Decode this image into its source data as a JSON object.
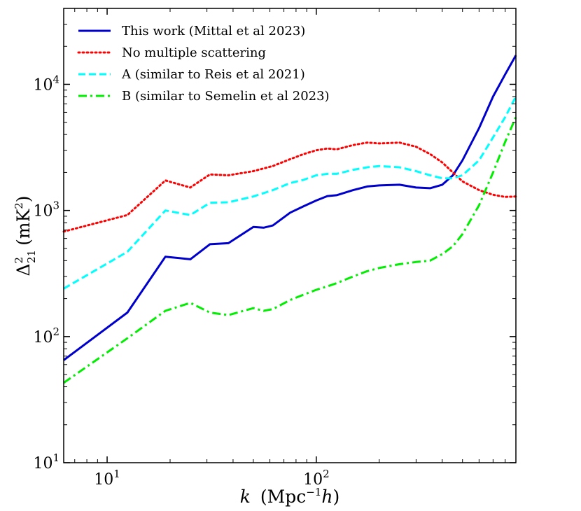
{
  "chart_data": {
    "type": "line",
    "title": "",
    "xlabel": "k (Mpc⁻¹h)",
    "ylabel": "Δ²₂₁ (mK²)",
    "xscale": "log",
    "yscale": "log",
    "xlim": [
      6.2,
      900
    ],
    "ylim": [
      10,
      40000
    ],
    "xticks": [
      {
        "value": 10,
        "base": "10",
        "exp": "1"
      },
      {
        "value": 100,
        "base": "10",
        "exp": "2"
      }
    ],
    "yticks": [
      {
        "value": 10,
        "base": "10",
        "exp": "1"
      },
      {
        "value": 100,
        "base": "10",
        "exp": "2"
      },
      {
        "value": 1000,
        "base": "10",
        "exp": "3"
      },
      {
        "value": 10000,
        "base": "10",
        "exp": "4"
      }
    ],
    "x_label": {
      "main": "k",
      "unit": "Mpc",
      "unit_exp": "−1",
      "unit_tail": "h"
    },
    "y_label": {
      "main": "Δ",
      "sup": "2",
      "sub": "21",
      "unit": "mK",
      "unit_exp": "2"
    },
    "legend_position": "top-left",
    "series": [
      {
        "name": "This work (Mittal et al 2023)",
        "color": "#0000cc",
        "style": "solid",
        "x": [
          6.2,
          12.5,
          19,
          25,
          31,
          38,
          50,
          56,
          62,
          75,
          87,
          100,
          113,
          125,
          150,
          175,
          200,
          250,
          300,
          350,
          400,
          450,
          500,
          600,
          700,
          800,
          900
        ],
        "y": [
          65,
          155,
          430,
          410,
          540,
          550,
          740,
          730,
          760,
          960,
          1080,
          1200,
          1300,
          1320,
          1450,
          1550,
          1580,
          1600,
          1520,
          1500,
          1600,
          1900,
          2500,
          4500,
          8000,
          12000,
          17000
        ]
      },
      {
        "name": "No multiple scattering",
        "color": "#ff0000",
        "style": "dotted",
        "x": [
          6.2,
          12.5,
          19,
          25,
          31,
          38,
          50,
          62,
          75,
          87,
          100,
          113,
          125,
          150,
          175,
          200,
          250,
          300,
          350,
          400,
          450,
          500,
          600,
          700,
          800,
          900
        ],
        "y": [
          680,
          920,
          1730,
          1520,
          1930,
          1900,
          2050,
          2250,
          2550,
          2800,
          3000,
          3100,
          3050,
          3300,
          3450,
          3400,
          3450,
          3200,
          2800,
          2400,
          2000,
          1700,
          1450,
          1330,
          1280,
          1290
        ]
      },
      {
        "name": "A (similar to Reis et al 2021)",
        "color": "#00ffff",
        "style": "dashed",
        "x": [
          6.2,
          12.5,
          19,
          25,
          31,
          38,
          50,
          62,
          75,
          87,
          100,
          113,
          125,
          150,
          175,
          200,
          250,
          300,
          350,
          400,
          450,
          500,
          600,
          700,
          800,
          900
        ],
        "y": [
          240,
          470,
          1000,
          920,
          1150,
          1160,
          1290,
          1450,
          1650,
          1750,
          1900,
          1950,
          1950,
          2100,
          2200,
          2250,
          2200,
          2050,
          1900,
          1800,
          1800,
          1900,
          2500,
          3800,
          5500,
          8000
        ]
      },
      {
        "name": "B (similar to Semelin et al 2023)",
        "color": "#00ee00",
        "style": "dashdot",
        "x": [
          6.2,
          12.5,
          19,
          25,
          31,
          38,
          50,
          56,
          62,
          75,
          87,
          100,
          113,
          125,
          150,
          175,
          200,
          250,
          300,
          350,
          400,
          450,
          500,
          600,
          700,
          800,
          900
        ],
        "y": [
          43,
          97,
          160,
          185,
          155,
          148,
          168,
          160,
          165,
          195,
          215,
          235,
          250,
          265,
          300,
          330,
          350,
          375,
          390,
          400,
          450,
          520,
          650,
          1100,
          2000,
          3500,
          5500
        ]
      }
    ]
  }
}
